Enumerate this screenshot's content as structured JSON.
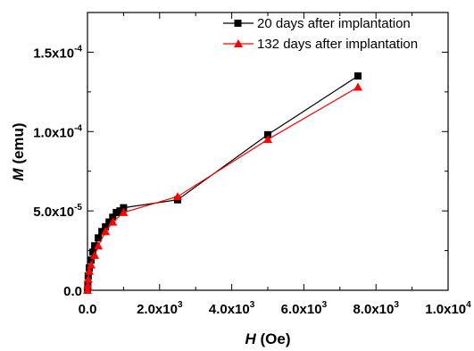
{
  "chart_data": {
    "type": "line",
    "title": "",
    "xlabel": {
      "symbol": "H",
      "unit": " (Oe)"
    },
    "ylabel": {
      "symbol": "M",
      "unit": " (emu)"
    },
    "xlim": [
      0,
      10000
    ],
    "ylim": [
      0,
      0.000175
    ],
    "x_ticks": [
      {
        "value": 0,
        "mant": "0.0",
        "exp": ""
      },
      {
        "value": 2000,
        "mant": "2.0x10",
        "exp": "3"
      },
      {
        "value": 4000,
        "mant": "4.0x10",
        "exp": "3"
      },
      {
        "value": 6000,
        "mant": "6.0x10",
        "exp": "3"
      },
      {
        "value": 8000,
        "mant": "8.0x10",
        "exp": "3"
      },
      {
        "value": 10000,
        "mant": "1.0x10",
        "exp": "4"
      }
    ],
    "y_ticks": [
      {
        "value": 0,
        "mant": "0.0",
        "exp": ""
      },
      {
        "value": 5e-05,
        "mant": "5.0x10",
        "exp": "-5"
      },
      {
        "value": 0.0001,
        "mant": "1.0x10",
        "exp": "-4"
      },
      {
        "value": 0.00015,
        "mant": "1.5x10",
        "exp": "-4"
      }
    ],
    "legend_position": "top-right",
    "series": [
      {
        "name": "20 days after implantation",
        "color": "#000000",
        "marker": "square",
        "x": [
          0,
          10,
          20,
          50,
          100,
          150,
          200,
          300,
          400,
          500,
          600,
          700,
          800,
          900,
          1000,
          2500,
          5000,
          7500
        ],
        "y": [
          0.0,
          4e-06,
          9e-06,
          1.4e-05,
          1.9e-05,
          2.4e-05,
          2.8e-05,
          3.3e-05,
          3.7e-05,
          4e-05,
          4.3e-05,
          4.6e-05,
          4.9e-05,
          5e-05,
          5.2e-05,
          5.7e-05,
          9.8e-05,
          0.000135
        ]
      },
      {
        "name": "132 days after implantation",
        "color": "#ff0000",
        "marker": "triangle",
        "x": [
          0,
          10,
          20,
          50,
          100,
          200,
          300,
          500,
          700,
          1000,
          2500,
          5000,
          7500
        ],
        "y": [
          0.0,
          3e-06,
          7e-06,
          1.2e-05,
          1.6e-05,
          2.2e-05,
          2.8e-05,
          3.7e-05,
          4.3e-05,
          4.9e-05,
          5.9e-05,
          9.5e-05,
          0.000128
        ]
      }
    ]
  }
}
